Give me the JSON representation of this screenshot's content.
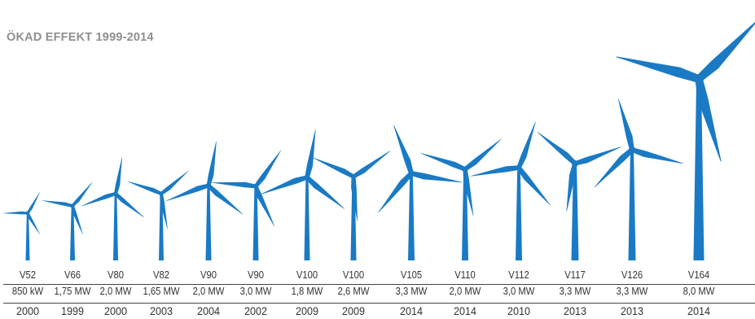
{
  "title": "ÖKAD EFFEKT 1999-2014",
  "colors": {
    "turbine": "#1a7ac4",
    "title": "#8f8f8f",
    "text": "#333333",
    "rule": "#444444"
  },
  "turbines": [
    {
      "model": "V52",
      "power": "850 kW",
      "year": "2000"
    },
    {
      "model": "V66",
      "power": "1,75 MW",
      "year": "1999"
    },
    {
      "model": "V80",
      "power": "2,0 MW",
      "year": "2000"
    },
    {
      "model": "V82",
      "power": "1,65 MW",
      "year": "2003"
    },
    {
      "model": "V90",
      "power": "2,0 MW",
      "year": "2004"
    },
    {
      "model": "V90",
      "power": "3,0 MW",
      "year": "2002"
    },
    {
      "model": "V100",
      "power": "1,8 MW",
      "year": "2009"
    },
    {
      "model": "V100",
      "power": "2,6 MW",
      "year": "2009"
    },
    {
      "model": "V105",
      "power": "3,3 MW",
      "year": "2014"
    },
    {
      "model": "V110",
      "power": "2,0 MW",
      "year": "2014"
    },
    {
      "model": "V112",
      "power": "3,0 MW",
      "year": "2010"
    },
    {
      "model": "V117",
      "power": "3,3 MW",
      "year": "2013"
    },
    {
      "model": "V126",
      "power": "3,3 MW",
      "year": "2013"
    },
    {
      "model": "V164",
      "power": "8,0 MW",
      "year": "2014"
    }
  ]
}
